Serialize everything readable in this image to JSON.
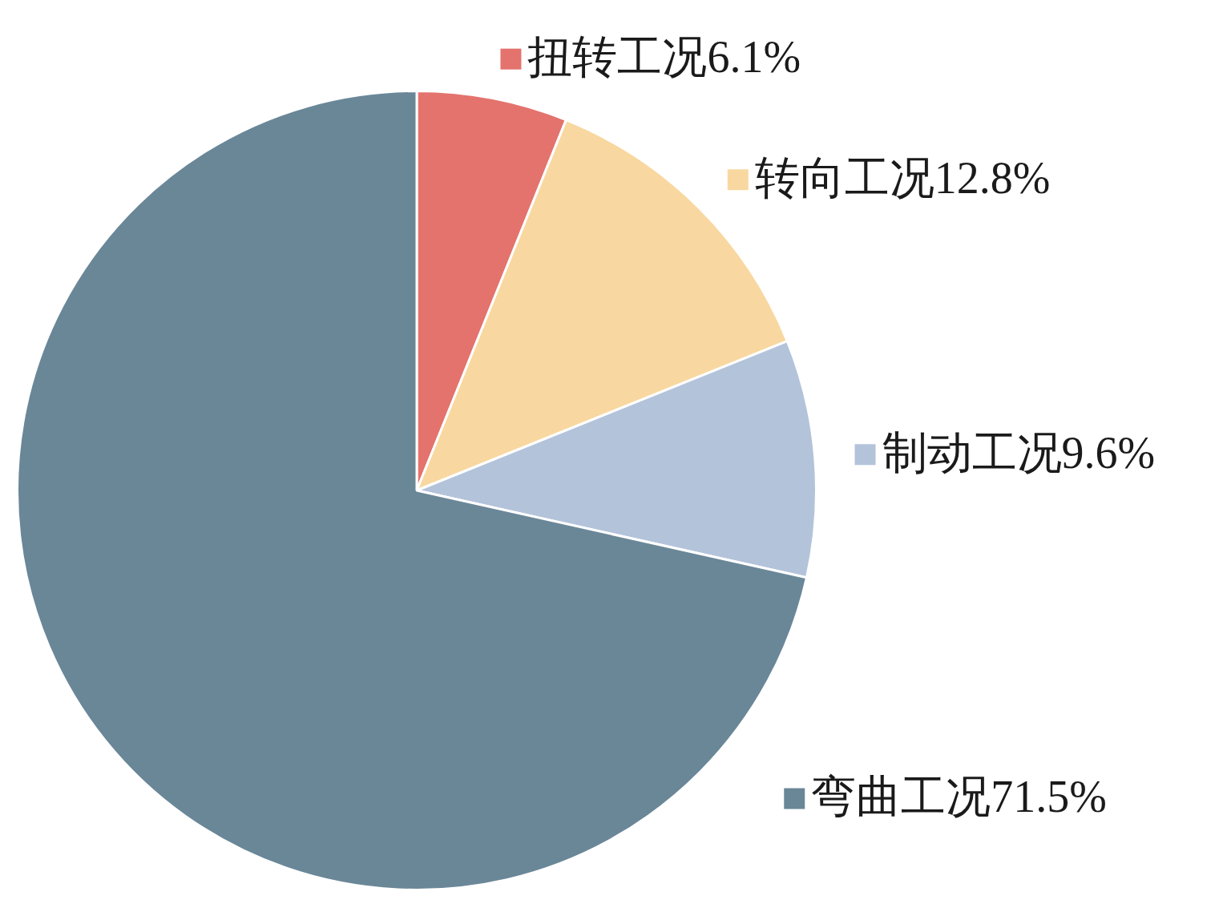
{
  "chart_data": {
    "type": "pie",
    "categories": [
      "扭转工况",
      "转向工况",
      "制动工况",
      "弯曲工况"
    ],
    "values": [
      6.1,
      12.8,
      9.6,
      71.5
    ],
    "colors": [
      "#e4736d",
      "#f8d8a0",
      "#b3c3da",
      "#6a8798"
    ],
    "value_labels": [
      "6.1%",
      "12.8%",
      "9.6%",
      "71.5%"
    ],
    "legend": "right"
  }
}
